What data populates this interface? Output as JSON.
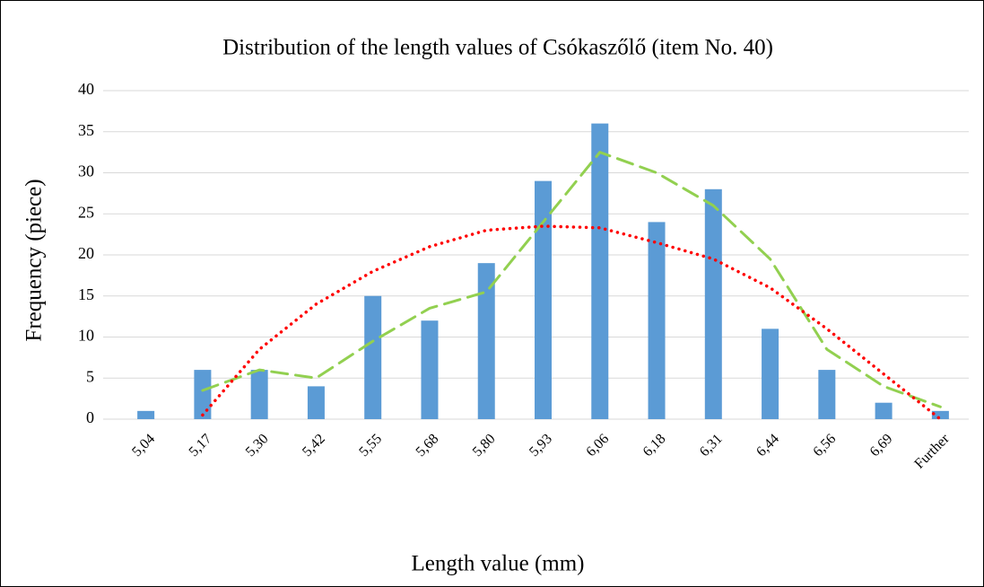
{
  "chart_data": {
    "type": "bar",
    "title": "Distribution of the length values of Csókaszőlő (item No. 40)",
    "x_label": "Length value (mm)",
    "y_label": "Frequency (piece)",
    "categories": [
      "5,04",
      "5,17",
      "5,30",
      "5,42",
      "5,55",
      "5,68",
      "5,80",
      "5,93",
      "6,06",
      "6,18",
      "6,31",
      "6,44",
      "6,56",
      "6,69",
      "Further"
    ],
    "series": [
      {
        "type": "bar",
        "color": "#5b9bd5",
        "values": [
          1,
          6,
          6,
          4,
          15,
          12,
          19,
          29,
          36,
          24,
          28,
          11,
          6,
          2,
          1
        ]
      },
      {
        "type": "line",
        "color": "#92d050",
        "dash": "dashed",
        "values": [
          null,
          3.5,
          6,
          5,
          9.5,
          13.5,
          15.5,
          24,
          32.5,
          30,
          26,
          19.5,
          8.5,
          4,
          1.5
        ]
      },
      {
        "type": "line",
        "color": "#ff0000",
        "dash": "dotted",
        "values": [
          null,
          0.5,
          8.5,
          14,
          18,
          21,
          23,
          23.5,
          23.3,
          21.5,
          19.5,
          16,
          11,
          5.5,
          0
        ]
      }
    ],
    "ylim": [
      0,
      40
    ],
    "yticks": [
      0,
      5,
      10,
      15,
      20,
      25,
      30,
      35,
      40
    ],
    "grid": true
  }
}
